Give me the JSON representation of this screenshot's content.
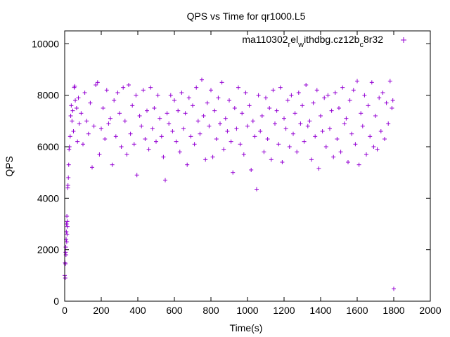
{
  "chart_data": {
    "type": "scatter",
    "title": "QPS vs Time for qr1000.L5",
    "xlabel": "Time(s)",
    "ylabel": "QPS",
    "xlim": [
      0,
      2000
    ],
    "ylim": [
      0,
      10500
    ],
    "x_ticks": [
      0,
      200,
      400,
      600,
      800,
      1000,
      1200,
      1400,
      1600,
      1800,
      2000
    ],
    "y_ticks": [
      0,
      2000,
      4000,
      6000,
      8000,
      10000
    ],
    "grid": false,
    "legend_position": "top-right",
    "series": [
      {
        "name_parts": [
          "ma110302",
          "r",
          "el",
          "w",
          "ithdbg.cz12b",
          "c",
          "8r32"
        ],
        "color": "#9400d3",
        "marker": "plus",
        "points": [
          [
            0,
            1000
          ],
          [
            2,
            1500
          ],
          [
            3,
            900
          ],
          [
            4,
            1450
          ],
          [
            5,
            1900
          ],
          [
            6,
            2100
          ],
          [
            7,
            1800
          ],
          [
            8,
            2400
          ],
          [
            9,
            2700
          ],
          [
            10,
            3000
          ],
          [
            11,
            2300
          ],
          [
            12,
            3300
          ],
          [
            13,
            2600
          ],
          [
            14,
            3100
          ],
          [
            15,
            2900
          ],
          [
            17,
            4400
          ],
          [
            18,
            4500
          ],
          [
            20,
            4800
          ],
          [
            22,
            5300
          ],
          [
            24,
            5900
          ],
          [
            26,
            6000
          ],
          [
            30,
            6400
          ],
          [
            33,
            7200
          ],
          [
            36,
            7600
          ],
          [
            40,
            7000
          ],
          [
            44,
            7400
          ],
          [
            48,
            6600
          ],
          [
            52,
            8300
          ],
          [
            55,
            8350
          ],
          [
            58,
            7800
          ],
          [
            65,
            7500
          ],
          [
            70,
            6200
          ],
          [
            75,
            7900
          ],
          [
            80,
            6900
          ],
          [
            90,
            7300
          ],
          [
            100,
            6100
          ],
          [
            110,
            8100
          ],
          [
            120,
            7000
          ],
          [
            130,
            6500
          ],
          [
            140,
            7700
          ],
          [
            150,
            5200
          ],
          [
            160,
            6800
          ],
          [
            170,
            8400
          ],
          [
            180,
            8500
          ],
          [
            190,
            5700
          ],
          [
            200,
            6700
          ],
          [
            210,
            7500
          ],
          [
            220,
            6300
          ],
          [
            230,
            8200
          ],
          [
            240,
            6900
          ],
          [
            250,
            7100
          ],
          [
            260,
            5300
          ],
          [
            270,
            7800
          ],
          [
            280,
            6400
          ],
          [
            290,
            8100
          ],
          [
            300,
            7300
          ],
          [
            310,
            6000
          ],
          [
            320,
            8300
          ],
          [
            330,
            7000
          ],
          [
            340,
            5700
          ],
          [
            350,
            8400
          ],
          [
            360,
            6500
          ],
          [
            370,
            7600
          ],
          [
            380,
            6100
          ],
          [
            390,
            8000
          ],
          [
            395,
            4900
          ],
          [
            410,
            7200
          ],
          [
            420,
            6800
          ],
          [
            430,
            8200
          ],
          [
            440,
            6300
          ],
          [
            450,
            7400
          ],
          [
            460,
            5900
          ],
          [
            470,
            8300
          ],
          [
            480,
            6700
          ],
          [
            490,
            7500
          ],
          [
            500,
            6200
          ],
          [
            510,
            8000
          ],
          [
            520,
            7100
          ],
          [
            530,
            6400
          ],
          [
            540,
            5600
          ],
          [
            550,
            4700
          ],
          [
            560,
            7300
          ],
          [
            570,
            6900
          ],
          [
            580,
            8000
          ],
          [
            590,
            6600
          ],
          [
            600,
            7800
          ],
          [
            610,
            6200
          ],
          [
            620,
            7400
          ],
          [
            630,
            5800
          ],
          [
            640,
            8100
          ],
          [
            650,
            6700
          ],
          [
            660,
            7300
          ],
          [
            670,
            5300
          ],
          [
            680,
            7900
          ],
          [
            690,
            6400
          ],
          [
            700,
            7600
          ],
          [
            710,
            6100
          ],
          [
            720,
            8300
          ],
          [
            730,
            7000
          ],
          [
            740,
            6500
          ],
          [
            750,
            8600
          ],
          [
            760,
            7200
          ],
          [
            770,
            5500
          ],
          [
            780,
            7700
          ],
          [
            790,
            6800
          ],
          [
            800,
            8200
          ],
          [
            810,
            5600
          ],
          [
            820,
            7400
          ],
          [
            830,
            6300
          ],
          [
            840,
            7900
          ],
          [
            850,
            6900
          ],
          [
            860,
            8500
          ],
          [
            870,
            5900
          ],
          [
            880,
            7100
          ],
          [
            890,
            6600
          ],
          [
            900,
            7800
          ],
          [
            910,
            6200
          ],
          [
            920,
            5000
          ],
          [
            930,
            7500
          ],
          [
            940,
            6700
          ],
          [
            950,
            8300
          ],
          [
            960,
            6100
          ],
          [
            970,
            7300
          ],
          [
            980,
            5700
          ],
          [
            990,
            8100
          ],
          [
            1000,
            6800
          ],
          [
            1010,
            7600
          ],
          [
            1020,
            5100
          ],
          [
            1030,
            7000
          ],
          [
            1040,
            6400
          ],
          [
            1050,
            4350
          ],
          [
            1060,
            8000
          ],
          [
            1070,
            6600
          ],
          [
            1080,
            7200
          ],
          [
            1090,
            5800
          ],
          [
            1100,
            7900
          ],
          [
            1110,
            6300
          ],
          [
            1120,
            7500
          ],
          [
            1130,
            5500
          ],
          [
            1140,
            8200
          ],
          [
            1150,
            6900
          ],
          [
            1160,
            7400
          ],
          [
            1170,
            6100
          ],
          [
            1180,
            8300
          ],
          [
            1190,
            5400
          ],
          [
            1200,
            7100
          ],
          [
            1210,
            6700
          ],
          [
            1220,
            7800
          ],
          [
            1230,
            6000
          ],
          [
            1240,
            8000
          ],
          [
            1250,
            6500
          ],
          [
            1260,
            7300
          ],
          [
            1270,
            5800
          ],
          [
            1280,
            8100
          ],
          [
            1290,
            6900
          ],
          [
            1300,
            7600
          ],
          [
            1310,
            6200
          ],
          [
            1320,
            8400
          ],
          [
            1330,
            6800
          ],
          [
            1340,
            7000
          ],
          [
            1350,
            5500
          ],
          [
            1360,
            7700
          ],
          [
            1370,
            6400
          ],
          [
            1380,
            8200
          ],
          [
            1390,
            5150
          ],
          [
            1400,
            7200
          ],
          [
            1410,
            6600
          ],
          [
            1420,
            7900
          ],
          [
            1430,
            6000
          ],
          [
            1440,
            8000
          ],
          [
            1450,
            6700
          ],
          [
            1460,
            7400
          ],
          [
            1470,
            5600
          ],
          [
            1480,
            8100
          ],
          [
            1490,
            6300
          ],
          [
            1500,
            7500
          ],
          [
            1510,
            5800
          ],
          [
            1520,
            8300
          ],
          [
            1530,
            6900
          ],
          [
            1540,
            7100
          ],
          [
            1550,
            5400
          ],
          [
            1560,
            7800
          ],
          [
            1570,
            6500
          ],
          [
            1580,
            8200
          ],
          [
            1590,
            6100
          ],
          [
            1600,
            8550
          ],
          [
            1610,
            5300
          ],
          [
            1620,
            7300
          ],
          [
            1630,
            6800
          ],
          [
            1640,
            8000
          ],
          [
            1650,
            5700
          ],
          [
            1660,
            7600
          ],
          [
            1670,
            6400
          ],
          [
            1680,
            8500
          ],
          [
            1690,
            6000
          ],
          [
            1700,
            7200
          ],
          [
            1710,
            5900
          ],
          [
            1720,
            7900
          ],
          [
            1730,
            6600
          ],
          [
            1740,
            8100
          ],
          [
            1750,
            6300
          ],
          [
            1760,
            7700
          ],
          [
            1770,
            6900
          ],
          [
            1780,
            8550
          ],
          [
            1790,
            7500
          ],
          [
            1795,
            7800
          ],
          [
            1800,
            480
          ]
        ]
      }
    ]
  }
}
